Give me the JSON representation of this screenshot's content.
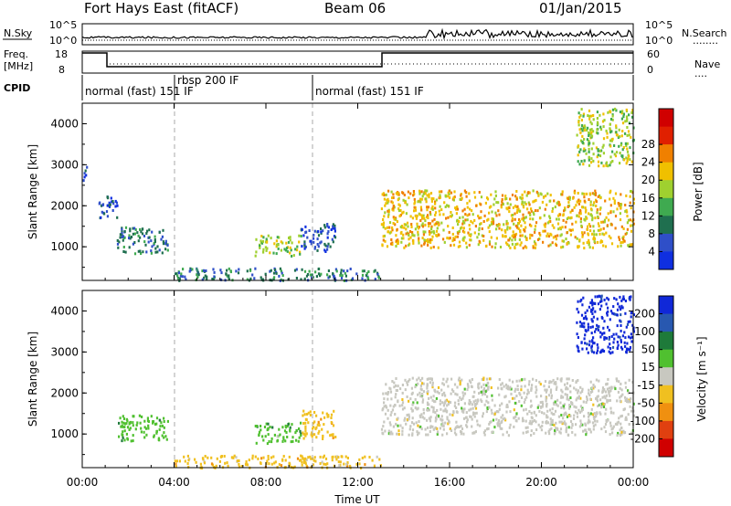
{
  "header": {
    "title": "Fort Hays East (fitACF)",
    "beam": "Beam 06",
    "date": "01/Jan/2015"
  },
  "strip_panels": {
    "noise": {
      "left_label": "N.Sky",
      "left_ticks": [
        "10^5",
        "10^0"
      ],
      "right_ticks": [
        "10^5",
        "10^0"
      ],
      "right_label": "N.Search",
      "right_line_sample": "........"
    },
    "frequency": {
      "left_label_line1": "Freq.",
      "left_label_line2": "[MHz]",
      "left_ticks": [
        "18",
        "8"
      ],
      "right_ticks": [
        "60",
        "0"
      ],
      "right_label": "Nave",
      "right_line_sample": "...."
    },
    "cpid": {
      "label": "CPID",
      "modes": [
        "normal (fast) 151 IF",
        "rbsp 200 IF",
        "normal (fast) 151 IF"
      ]
    }
  },
  "chart_data": [
    {
      "type": "heatmap",
      "name": "power",
      "ylabel": "Slant Range [km]",
      "ylim": [
        180,
        4500
      ],
      "yticks": [
        "1000",
        "2000",
        "3000",
        "4000"
      ],
      "colorbar_label": "Power [dB]",
      "colorbar_ticks": [
        "4",
        "8",
        "12",
        "16",
        "20",
        "24",
        "28"
      ],
      "colorbar_colors": [
        "#0f2fe0",
        "#2f4fc8",
        "#1f6f4f",
        "#3faa50",
        "#9fd02f",
        "#f0c000",
        "#f08000",
        "#e02000",
        "#d00000"
      ],
      "echo_regions": [
        {
          "t_start": 0.0,
          "t_end": 0.25,
          "range_low": 2600,
          "range_high": 3000,
          "power_db": 4
        },
        {
          "t_start": 0.7,
          "t_end": 1.5,
          "range_low": 1700,
          "range_high": 2300,
          "power_db": 5
        },
        {
          "t_start": 1.5,
          "t_end": 3.7,
          "range_low": 850,
          "range_high": 1500,
          "power_db": 6
        },
        {
          "t_start": 7.5,
          "t_end": 9.5,
          "range_low": 800,
          "range_high": 1300,
          "power_db": 14
        },
        {
          "t_start": 9.5,
          "t_end": 11.0,
          "range_low": 900,
          "range_high": 1600,
          "power_db": 5
        },
        {
          "t_start": 4.0,
          "t_end": 13.0,
          "range_low": 200,
          "range_high": 500,
          "power_db": 8
        },
        {
          "t_start": 13.0,
          "t_end": 24.0,
          "range_low": 1000,
          "range_high": 2400,
          "power_db": 18
        },
        {
          "t_start": 21.5,
          "t_end": 24.0,
          "range_low": 3000,
          "range_high": 4400,
          "power_db": 16
        }
      ]
    },
    {
      "type": "heatmap",
      "name": "velocity",
      "ylabel": "Slant Range [km]",
      "ylim": [
        180,
        4500
      ],
      "yticks": [
        "1000",
        "2000",
        "3000",
        "4000"
      ],
      "colorbar_label": "Velocity [m s⁻¹]",
      "colorbar_ticks": [
        "200",
        "100",
        "50",
        "15",
        "-15",
        "-50",
        "-100",
        "-200"
      ],
      "colorbar_colors": [
        "#1028d8",
        "#2858b0",
        "#1e7a3a",
        "#50c030",
        "#c8c8c0",
        "#f0c020",
        "#f09010",
        "#e04010",
        "#d00000"
      ],
      "xlabel": "Time UT",
      "xticks": [
        "00:00",
        "04:00",
        "08:00",
        "12:00",
        "16:00",
        "20:00",
        "00:00"
      ],
      "echo_regions": [
        {
          "t_start": 1.5,
          "t_end": 3.7,
          "range_low": 850,
          "range_high": 1500,
          "velocity": 40
        },
        {
          "t_start": 7.5,
          "t_end": 9.5,
          "range_low": 800,
          "range_high": 1300,
          "velocity": 40
        },
        {
          "t_start": 9.5,
          "t_end": 11.0,
          "range_low": 900,
          "range_high": 1600,
          "velocity": -40
        },
        {
          "t_start": 4.0,
          "t_end": 13.0,
          "range_low": 200,
          "range_high": 500,
          "velocity": -40
        },
        {
          "t_start": 13.0,
          "t_end": 24.0,
          "range_low": 1000,
          "range_high": 2400,
          "velocity": 0
        },
        {
          "t_start": 21.5,
          "t_end": 24.0,
          "range_low": 3000,
          "range_high": 4400,
          "velocity": 180
        }
      ]
    }
  ]
}
